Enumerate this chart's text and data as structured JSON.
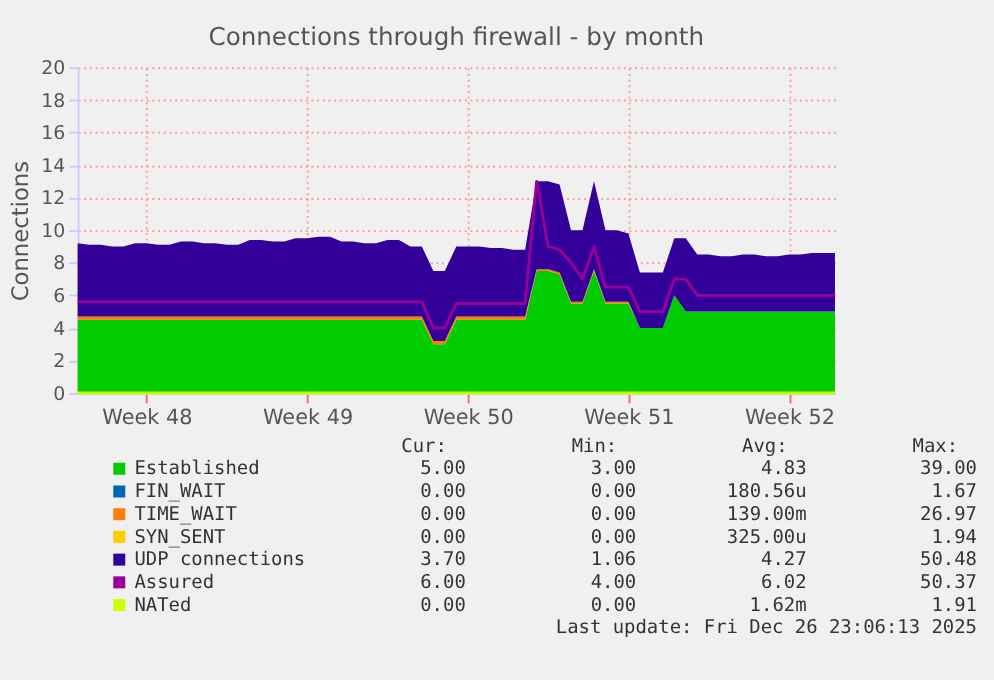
{
  "chart_data": {
    "type": "area",
    "stacked": true,
    "title": "Connections through firewall - by month",
    "ylabel": "Connections",
    "categories": [
      null,
      null,
      null,
      null,
      null,
      null,
      "Week 48",
      null,
      null,
      null,
      null,
      null,
      null,
      null,
      null,
      null,
      null,
      null,
      null,
      null,
      "Week 49",
      null,
      null,
      null,
      null,
      null,
      null,
      null,
      null,
      null,
      null,
      null,
      null,
      null,
      "Week 50",
      null,
      null,
      null,
      null,
      null,
      null,
      null,
      null,
      null,
      null,
      null,
      null,
      null,
      "Week 51",
      null,
      null,
      null,
      null,
      null,
      null,
      null,
      null,
      null,
      null,
      null,
      null,
      null,
      "Week 52",
      null,
      null,
      null,
      null
    ],
    "ylim": [
      0,
      20
    ],
    "yticks": [
      0,
      2,
      4,
      6,
      8,
      10,
      12,
      14,
      16,
      18,
      20
    ],
    "grid": true,
    "legend": "bottom",
    "series": [
      {
        "name": "Established",
        "color": "#00cc00",
        "values": [
          4.5,
          4.5,
          4.5,
          4.5,
          4.5,
          4.5,
          4.5,
          4.5,
          4.5,
          4.5,
          4.5,
          4.5,
          4.5,
          4.5,
          4.5,
          4.5,
          4.5,
          4.5,
          4.5,
          4.5,
          4.5,
          4.5,
          4.5,
          4.5,
          4.5,
          4.5,
          4.5,
          4.5,
          4.5,
          4.5,
          4.5,
          3.0,
          3.0,
          4.5,
          4.5,
          4.5,
          4.5,
          4.5,
          4.5,
          4.5,
          7.5,
          7.5,
          7.3,
          5.5,
          5.5,
          7.5,
          5.5,
          5.5,
          5.5,
          4.0,
          4.0,
          4.0,
          6.0,
          5.0,
          5.0,
          5.0,
          5.0,
          5.0,
          5.0,
          5.0,
          5.0,
          5.0,
          5.0,
          5.0,
          5.0,
          5.0,
          5.0
        ]
      },
      {
        "name": "FIN_WAIT",
        "color": "#0066b3",
        "values": [
          null,
          null,
          null,
          null,
          null,
          null,
          null,
          null,
          null,
          null,
          null,
          null,
          null,
          null,
          null,
          null,
          null,
          null,
          null,
          null,
          null,
          null,
          null,
          null,
          null,
          null,
          null,
          null,
          null,
          null,
          null,
          null,
          null,
          null,
          null,
          null,
          null,
          null,
          null,
          null,
          null,
          null,
          null,
          null,
          null,
          null,
          null,
          null,
          null,
          null,
          null,
          null,
          null,
          null,
          null,
          null,
          null,
          null,
          null,
          null,
          null,
          null,
          null,
          null,
          null,
          null,
          null
        ]
      },
      {
        "name": "TIME_WAIT",
        "color": "#ff8000",
        "values": [
          0.2,
          0.2,
          0.2,
          0.2,
          0.2,
          0.2,
          0.2,
          0.2,
          0.2,
          0.2,
          0.2,
          0.2,
          0.2,
          0.2,
          0.2,
          0.2,
          0.2,
          0.2,
          0.2,
          0.2,
          0.2,
          0.2,
          0.2,
          0.2,
          0.2,
          0.2,
          0.2,
          0.2,
          0.2,
          0.2,
          0.2,
          0.2,
          0.2,
          0.2,
          0.2,
          0.2,
          0.2,
          0.2,
          0.2,
          0.2,
          0.1,
          0.1,
          0.1,
          0.1,
          0.1,
          0.1,
          0.1,
          0.1,
          0.1,
          0,
          0,
          0,
          0,
          0,
          0,
          0,
          0,
          0,
          0,
          0,
          0,
          0,
          0,
          0,
          0,
          0,
          0
        ]
      },
      {
        "name": "SYN_SENT",
        "color": "#ffcc00",
        "values": [
          null,
          null,
          null,
          null,
          null,
          null,
          null,
          null,
          null,
          null,
          null,
          null,
          null,
          null,
          null,
          null,
          null,
          null,
          null,
          null,
          null,
          null,
          null,
          null,
          null,
          null,
          null,
          null,
          null,
          null,
          null,
          null,
          null,
          null,
          null,
          null,
          null,
          null,
          null,
          null,
          null,
          null,
          null,
          null,
          null,
          null,
          null,
          null,
          null,
          null,
          null,
          null,
          null,
          null,
          null,
          null,
          null,
          null,
          null,
          null,
          null,
          null,
          null,
          null,
          null,
          null,
          null
        ]
      },
      {
        "name": "UDP connections",
        "color": "#330099",
        "values": [
          4.5,
          4.4,
          4.4,
          4.3,
          4.3,
          4.5,
          4.5,
          4.4,
          4.4,
          4.6,
          4.6,
          4.5,
          4.5,
          4.4,
          4.4,
          4.7,
          4.7,
          4.6,
          4.6,
          4.8,
          4.8,
          4.9,
          4.9,
          4.6,
          4.6,
          4.5,
          4.5,
          4.7,
          4.7,
          4.3,
          4.3,
          4.3,
          4.3,
          4.3,
          4.3,
          4.3,
          4.2,
          4.2,
          4.1,
          4.1,
          5.4,
          5.4,
          5.4,
          4.4,
          4.4,
          5.4,
          4.4,
          4.4,
          4.2,
          3.4,
          3.4,
          3.4,
          3.5,
          4.5,
          3.5,
          3.5,
          3.4,
          3.4,
          3.5,
          3.5,
          3.4,
          3.4,
          3.5,
          3.5,
          3.6,
          3.6,
          3.6
        ]
      },
      {
        "name": "Assured",
        "color": "#990099",
        "type": "line",
        "values": [
          5.6,
          5.6,
          5.6,
          5.6,
          5.6,
          5.6,
          5.6,
          5.6,
          5.6,
          5.6,
          5.6,
          5.6,
          5.6,
          5.6,
          5.6,
          5.6,
          5.6,
          5.6,
          5.6,
          5.6,
          5.6,
          5.6,
          5.6,
          5.6,
          5.6,
          5.6,
          5.6,
          5.6,
          5.6,
          5.6,
          5.6,
          4.0,
          4.0,
          5.5,
          5.5,
          5.5,
          5.5,
          5.5,
          5.5,
          5.5,
          13.0,
          9.0,
          8.8,
          8.0,
          7.0,
          9.0,
          6.5,
          6.5,
          6.5,
          5.0,
          5.0,
          5.0,
          7.0,
          7.0,
          6.0,
          6.0,
          6.0,
          6.0,
          6.0,
          6.0,
          6.0,
          6.0,
          6.0,
          6.0,
          6.0,
          6.0,
          6.0
        ]
      },
      {
        "name": "NATed",
        "color": "#ccff00",
        "type": "line",
        "values": [
          0,
          0,
          0,
          0,
          0,
          0,
          0,
          0,
          0,
          0,
          0,
          0,
          0,
          0,
          0,
          0,
          0,
          0,
          0,
          0,
          0,
          0,
          0,
          0,
          0,
          0,
          0,
          0,
          0,
          0,
          0,
          0,
          0,
          0,
          0,
          0,
          0,
          0,
          0,
          0,
          0,
          0,
          0,
          0,
          0,
          0,
          0,
          0,
          0,
          0,
          0,
          0,
          0,
          0,
          0,
          0,
          0,
          0,
          0,
          0,
          0,
          0,
          0,
          0,
          0,
          0,
          0
        ]
      }
    ],
    "annotations": [
      "Cur:",
      "Min:",
      "Avg:",
      "Max:",
      "5.00",
      "3.00",
      "4.83",
      "39.00",
      "0.00",
      "0.00",
      "180.56u",
      "1.67",
      "0.00",
      "0.00",
      "139.00m",
      "26.97",
      "0.00",
      "0.00",
      "325.00u",
      "1.94",
      "3.70",
      "1.06",
      "4.27",
      "50.48",
      "6.00",
      "4.00",
      "6.02",
      "50.37",
      "0.00",
      "0.00",
      "1.62m",
      "1.91",
      "Last update: Fri Dec 26 23:06:13 2025"
    ]
  }
}
